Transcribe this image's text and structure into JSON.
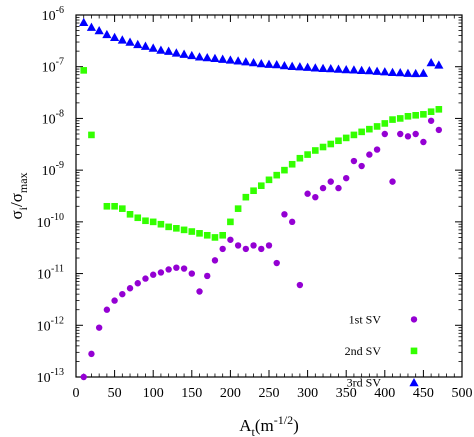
{
  "chart_data": {
    "type": "scatter",
    "title": "",
    "xlabel": "A_t(m^-1/2)",
    "ylabel": "σ_i/σ_max",
    "xlim": [
      0,
      500
    ],
    "ylim": [
      1e-13,
      1e-06
    ],
    "yscale": "log",
    "xticks": [
      0,
      50,
      100,
      150,
      200,
      250,
      300,
      350,
      400,
      450,
      500
    ],
    "xtick_labels": [
      "0",
      "50",
      "100",
      "150",
      "200",
      "250",
      "300",
      "350",
      "400",
      "450",
      "500"
    ],
    "yticks": [
      1e-13,
      1e-12,
      1e-11,
      1e-10,
      1e-09,
      1e-08,
      1e-07,
      1e-06
    ],
    "ytick_labels": [
      {
        "base": "10",
        "exp": "-13"
      },
      {
        "base": "10",
        "exp": "-12"
      },
      {
        "base": "10",
        "exp": "-11"
      },
      {
        "base": "10",
        "exp": "-10"
      },
      {
        "base": "10",
        "exp": "-9"
      },
      {
        "base": "10",
        "exp": "-8"
      },
      {
        "base": "10",
        "exp": "-7"
      },
      {
        "base": "10",
        "exp": "-6"
      }
    ],
    "grid": false,
    "legend_position": "bottom-right",
    "series": [
      {
        "name": "1st SV",
        "marker": "circle",
        "color": "#9400d3",
        "x": [
          10,
          20,
          30,
          40,
          50,
          60,
          70,
          80,
          90,
          100,
          110,
          120,
          130,
          140,
          150,
          160,
          170,
          180,
          190,
          200,
          210,
          220,
          230,
          240,
          250,
          260,
          270,
          280,
          290,
          300,
          310,
          320,
          330,
          340,
          350,
          360,
          370,
          380,
          390,
          400,
          410,
          420,
          430,
          440,
          450,
          460,
          470
        ],
        "y": [
          1e-13,
          2.8e-13,
          9e-13,
          2e-12,
          3e-12,
          4e-12,
          5.2e-12,
          6.5e-12,
          8e-12,
          9.5e-12,
          1.05e-11,
          1.2e-11,
          1.3e-11,
          1.25e-11,
          1e-11,
          4.5e-12,
          9e-12,
          1.8e-11,
          3e-11,
          4.5e-11,
          3.5e-11,
          3e-11,
          3.5e-11,
          3e-11,
          3.5e-11,
          1.6e-11,
          1.4e-10,
          1e-10,
          6e-12,
          3.5e-10,
          3e-10,
          4.5e-10,
          6e-10,
          4.5e-10,
          7e-10,
          1.5e-09,
          1.2e-09,
          2e-09,
          2.5e-09,
          5e-09,
          6e-10,
          5e-09,
          4.5e-09,
          5e-09,
          3.5e-09,
          9e-09,
          6e-09
        ]
      },
      {
        "name": "2nd SV",
        "marker": "square",
        "color": "#33ff00",
        "x": [
          10,
          20,
          40,
          50,
          60,
          70,
          80,
          90,
          100,
          110,
          120,
          130,
          140,
          150,
          160,
          170,
          180,
          190,
          200,
          210,
          220,
          230,
          240,
          250,
          260,
          270,
          280,
          290,
          300,
          310,
          320,
          330,
          340,
          350,
          360,
          370,
          380,
          390,
          400,
          410,
          420,
          430,
          440,
          450,
          460,
          470
        ],
        "y": [
          8.5e-08,
          4.8e-09,
          2e-10,
          2e-10,
          1.8e-10,
          1.4e-10,
          1.2e-10,
          1.05e-10,
          1e-10,
          9e-11,
          8e-11,
          7.5e-11,
          7e-11,
          6.5e-11,
          6e-11,
          5.5e-11,
          5e-11,
          5.5e-11,
          1e-10,
          1.8e-10,
          3e-10,
          4e-10,
          5e-10,
          6.5e-10,
          8e-10,
          1e-09,
          1.3e-09,
          1.7e-09,
          2e-09,
          2.4e-09,
          2.8e-09,
          3.2e-09,
          3.7e-09,
          4.2e-09,
          4.8e-09,
          5.5e-09,
          6.2e-09,
          7e-09,
          8e-09,
          9.5e-09,
          1e-08,
          1.1e-08,
          1.15e-08,
          1.2e-08,
          1.35e-08,
          1.5e-08
        ]
      },
      {
        "name": "3rd SV",
        "marker": "triangle",
        "color": "#0000ff",
        "x": [
          10,
          20,
          30,
          40,
          50,
          60,
          70,
          80,
          90,
          100,
          110,
          120,
          130,
          140,
          150,
          160,
          170,
          180,
          190,
          200,
          210,
          220,
          230,
          240,
          250,
          260,
          270,
          280,
          290,
          300,
          310,
          320,
          330,
          340,
          350,
          360,
          370,
          380,
          390,
          400,
          410,
          420,
          430,
          440,
          450,
          460,
          470
        ],
        "y": [
          7.2e-07,
          5.8e-07,
          5e-07,
          4.2e-07,
          3.7e-07,
          3.3e-07,
          3e-07,
          2.7e-07,
          2.5e-07,
          2.3e-07,
          2.1e-07,
          2e-07,
          1.85e-07,
          1.75e-07,
          1.65e-07,
          1.55e-07,
          1.5e-07,
          1.45e-07,
          1.4e-07,
          1.35e-07,
          1.3e-07,
          1.25e-07,
          1.2e-07,
          1.15e-07,
          1.12e-07,
          1.1e-07,
          1.05e-07,
          1.02e-07,
          1e-07,
          9.8e-08,
          9.5e-08,
          9.3e-08,
          9.2e-08,
          9e-08,
          8.8e-08,
          8.7e-08,
          8.5e-08,
          8.4e-08,
          8.2e-08,
          8e-08,
          7.8e-08,
          7.7e-08,
          7.5e-08,
          7.4e-08,
          7.5e-08,
          1.2e-07,
          1.08e-07
        ]
      }
    ]
  }
}
